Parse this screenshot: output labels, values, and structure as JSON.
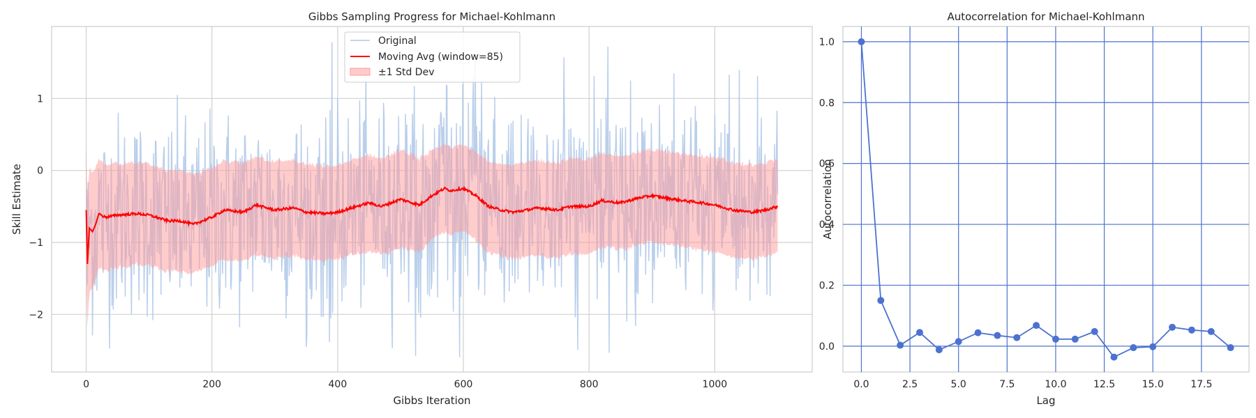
{
  "chart_data": [
    {
      "type": "line",
      "title": "Gibbs Sampling Progress for Michael-Kohlmann",
      "xlabel": "Gibbs Iteration",
      "ylabel": "Skill Estimate",
      "xlim": [
        -55,
        1155
      ],
      "ylim": [
        -2.8,
        2.0
      ],
      "xticks": [
        0,
        200,
        400,
        600,
        800,
        1000
      ],
      "xtick_labels": [
        "0",
        "200",
        "400",
        "600",
        "800",
        "1000"
      ],
      "yticks": [
        1,
        0,
        -1,
        -2
      ],
      "ytick_labels": [
        "1",
        "0",
        "−1",
        "−2"
      ],
      "grid": true,
      "legend_position": "top-center",
      "legend": [
        "Original",
        "Moving Avg (window=85)",
        "±1 Std Dev"
      ],
      "colors": {
        "original": "#aec7e8",
        "moving_avg": "#ff0000",
        "band": "#ffb0b0"
      },
      "n_iterations": 1100,
      "moving_avg_window": 85,
      "moving_avg_keypoints": {
        "x": [
          0,
          2,
          5,
          10,
          15,
          20,
          30,
          50,
          80,
          100,
          130,
          150,
          170,
          200,
          220,
          250,
          270,
          300,
          330,
          350,
          380,
          400,
          430,
          450,
          470,
          500,
          530,
          550,
          570,
          580,
          600,
          620,
          640,
          660,
          680,
          700,
          720,
          750,
          770,
          800,
          820,
          850,
          880,
          900,
          920,
          950,
          980,
          1000,
          1030,
          1060,
          1080,
          1100
        ],
        "y": [
          -0.55,
          -1.3,
          -0.8,
          -0.85,
          -0.75,
          -0.6,
          -0.65,
          -0.62,
          -0.6,
          -0.62,
          -0.7,
          -0.7,
          -0.75,
          -0.65,
          -0.55,
          -0.58,
          -0.48,
          -0.55,
          -0.52,
          -0.58,
          -0.6,
          -0.58,
          -0.5,
          -0.45,
          -0.5,
          -0.4,
          -0.48,
          -0.35,
          -0.25,
          -0.28,
          -0.25,
          -0.35,
          -0.5,
          -0.55,
          -0.58,
          -0.55,
          -0.52,
          -0.55,
          -0.5,
          -0.5,
          -0.42,
          -0.45,
          -0.38,
          -0.35,
          -0.38,
          -0.42,
          -0.45,
          -0.48,
          -0.55,
          -0.58,
          -0.55,
          -0.5
        ]
      },
      "std_band_halfwidth": {
        "x": [
          0,
          5,
          20,
          50,
          100,
          150,
          200,
          300,
          400,
          500,
          550,
          580,
          600,
          650,
          700,
          800,
          900,
          1000,
          1100
        ],
        "y": [
          0.9,
          0.85,
          0.75,
          0.72,
          0.7,
          0.7,
          0.68,
          0.67,
          0.65,
          0.68,
          0.62,
          0.6,
          0.6,
          0.64,
          0.66,
          0.66,
          0.64,
          0.66,
          0.65
        ]
      },
      "original_series_stats": {
        "center": -0.5,
        "spread": 0.7,
        "min": -2.6,
        "max": 1.8
      }
    },
    {
      "type": "line",
      "title": "Autocorrelation for Michael-Kohlmann",
      "xlabel": "Lag",
      "ylabel": "Autocorrelation",
      "xlim": [
        -0.95,
        19.95
      ],
      "ylim": [
        -0.085,
        1.05
      ],
      "xticks": [
        0,
        2.5,
        5,
        7.5,
        10,
        12.5,
        15,
        17.5
      ],
      "xtick_labels": [
        "0.0",
        "2.5",
        "5.0",
        "7.5",
        "10.0",
        "12.5",
        "15.0",
        "17.5"
      ],
      "yticks": [
        0,
        0.2,
        0.4,
        0.6,
        0.8,
        1.0
      ],
      "ytick_labels": [
        "0.0",
        "0.2",
        "0.4",
        "0.6",
        "0.8",
        "1.0"
      ],
      "grid": true,
      "color": "#4c72d0",
      "x": [
        0,
        1,
        2,
        3,
        4,
        5,
        6,
        7,
        8,
        9,
        10,
        11,
        12,
        13,
        14,
        15,
        16,
        17,
        18,
        19
      ],
      "values": [
        1.0,
        0.15,
        0.003,
        0.045,
        -0.012,
        0.015,
        0.044,
        0.035,
        0.028,
        0.068,
        0.023,
        0.023,
        0.048,
        -0.036,
        -0.005,
        -0.002,
        0.062,
        0.053,
        0.048,
        -0.005
      ]
    }
  ]
}
